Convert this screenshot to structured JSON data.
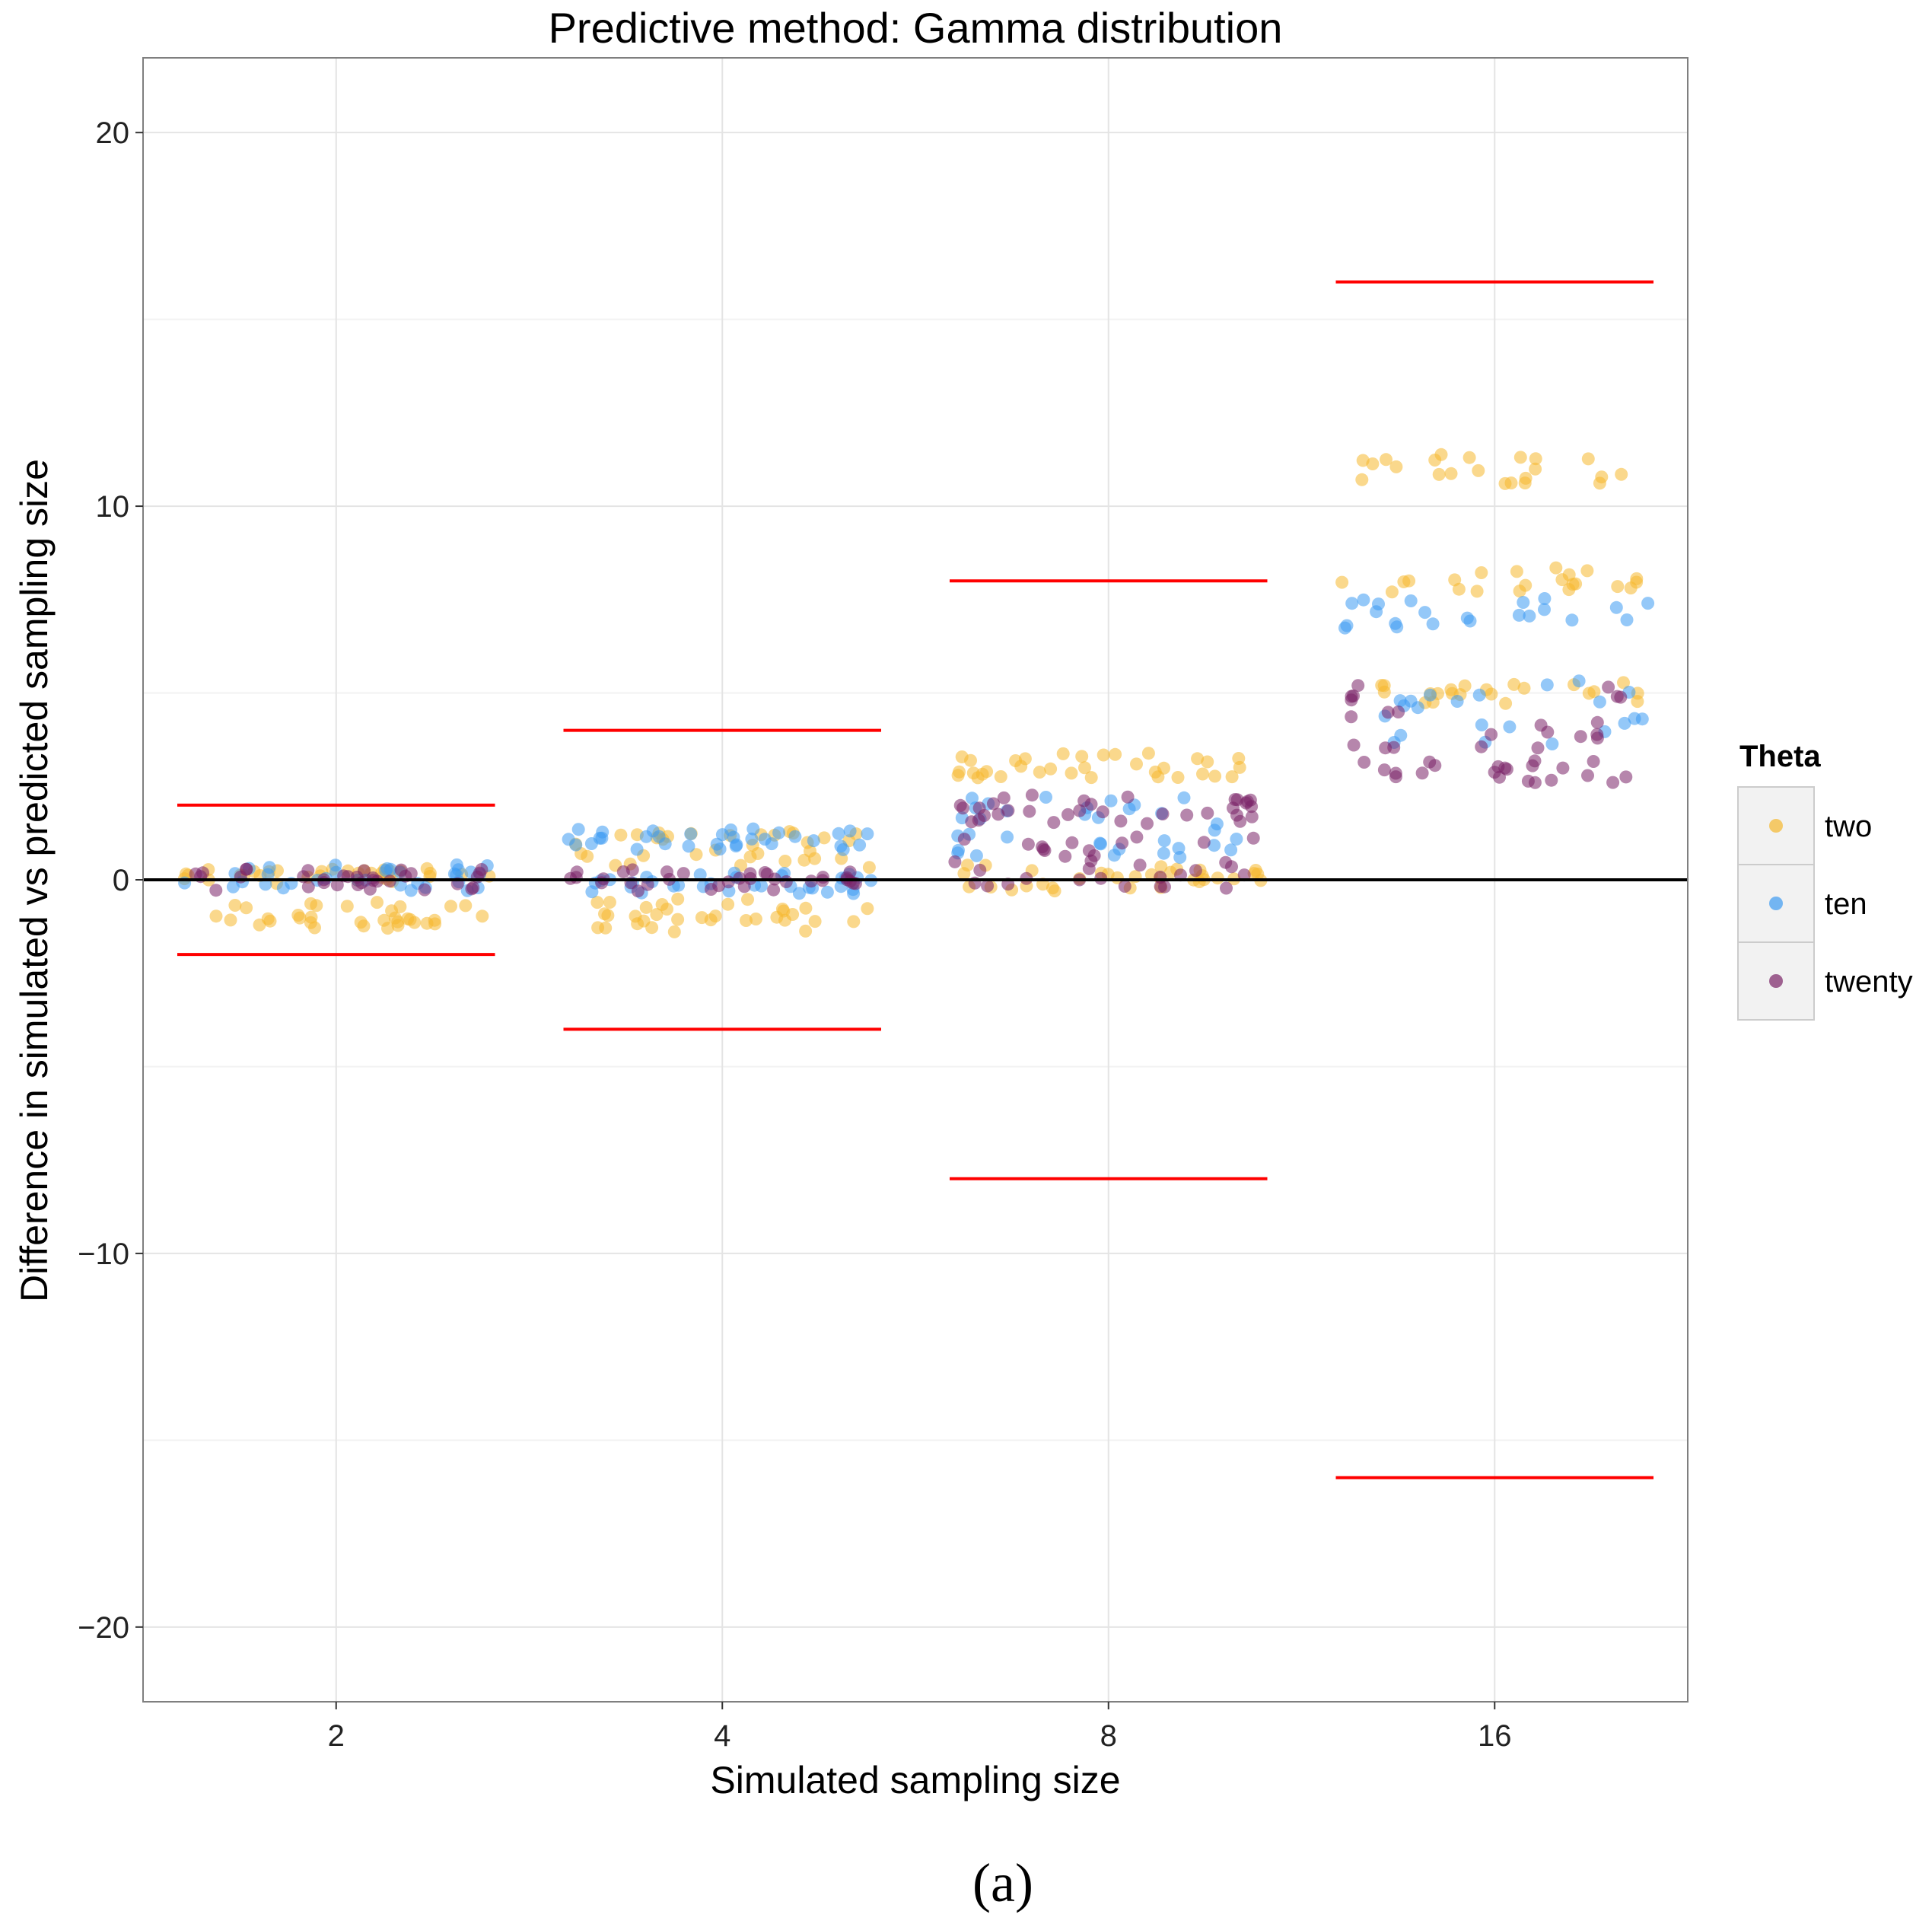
{
  "chart_data": {
    "type": "scatter",
    "title": "Predictive method: Gamma distribution",
    "xlabel": "Simulated sampling size",
    "ylabel": "Difference in simulated vs predicted sampling size",
    "caption": "(a)",
    "categories": [
      "2",
      "4",
      "8",
      "16"
    ],
    "ylim": [
      -22,
      22
    ],
    "yticks": [
      -20,
      -10,
      0,
      10,
      20
    ],
    "ytick_labels": [
      "−20",
      "−10",
      "0",
      "10",
      "20"
    ],
    "grid": true,
    "reference_line": 0,
    "limit_lines": [
      {
        "category": "2",
        "upper": 2,
        "lower": -2
      },
      {
        "category": "4",
        "upper": 4,
        "lower": -4
      },
      {
        "category": "8",
        "upper": 8,
        "lower": -8
      },
      {
        "category": "16",
        "upper": 16,
        "lower": -16
      }
    ],
    "legend": {
      "title": "Theta",
      "position": "right"
    },
    "series": [
      {
        "name": "two",
        "color": "#F5B82E",
        "bands": [
          [
            -1.3,
            -0.6
          ],
          [
            -0.1,
            0.3
          ],
          [
            -1.4,
            -0.5
          ],
          [
            0.3,
            1.3
          ],
          [
            -0.3,
            0.4
          ],
          [
            2.7,
            3.4
          ],
          [
            4.7,
            5.3
          ],
          [
            7.7,
            8.4
          ],
          [
            10.6,
            11.4
          ]
        ]
      },
      {
        "name": "ten",
        "color": "#3D9BF2",
        "bands": [
          [
            -0.3,
            0.4
          ],
          [
            -0.4,
            0.2
          ],
          [
            0.8,
            1.4
          ],
          [
            0.6,
            2.4
          ],
          [
            3.6,
            5.4
          ],
          [
            6.7,
            7.6
          ]
        ]
      },
      {
        "name": "twenty",
        "color": "#7A2367",
        "bands": [
          [
            -0.3,
            0.3
          ],
          [
            -0.3,
            0.3
          ],
          [
            -0.3,
            1.2
          ],
          [
            1.5,
            2.3
          ],
          [
            2.6,
            3.2
          ],
          [
            3.5,
            5.3
          ]
        ]
      }
    ]
  }
}
